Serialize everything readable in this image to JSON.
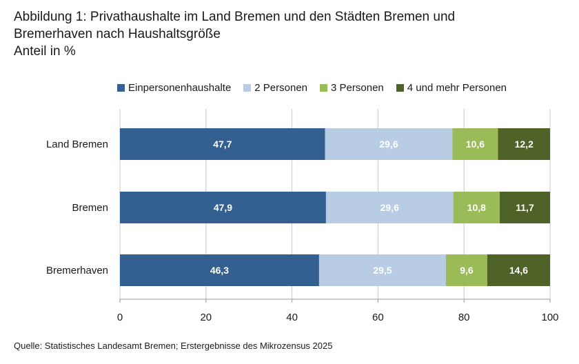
{
  "chart_data": {
    "type": "bar",
    "orientation": "horizontal",
    "stacked": true,
    "title": "Abbildung 1: Privathaushalte im Land Bremen und den Städten Bremen und Bremerhaven nach Haushaltsgröße",
    "title_lines": [
      "Abbildung 1: Privathaushalte im Land Bremen und den Städten Bremen und",
      "Bremerhaven nach Haushaltsgröße",
      "Anteil in %"
    ],
    "subtitle": "Anteil in %",
    "categories": [
      "Land Bremen",
      "Bremen",
      "Bremerhaven"
    ],
    "series": [
      {
        "name": "Einpersonenhaushalte",
        "color": "#335f91",
        "values": [
          47.7,
          47.9,
          46.3
        ],
        "labels": [
          "47,7",
          "47,9",
          "46,3"
        ],
        "label_color": "#ffffff"
      },
      {
        "name": "2 Personen",
        "color": "#b8cce4",
        "values": [
          29.6,
          29.6,
          29.5
        ],
        "labels": [
          "29,6",
          "29,6",
          "29,5"
        ],
        "label_color": "#ffffff"
      },
      {
        "name": "3 Personen",
        "color": "#9bbb59",
        "values": [
          10.6,
          10.8,
          9.6
        ],
        "labels": [
          "10,6",
          "10,8",
          "9,6"
        ],
        "label_color": "#ffffff"
      },
      {
        "name": "4 und mehr Personen",
        "color": "#4f6228",
        "values": [
          12.2,
          11.7,
          14.6
        ],
        "labels": [
          "12,2",
          "11,7",
          "14,6"
        ],
        "label_color": "#ffffff"
      }
    ],
    "xlim": [
      0,
      100
    ],
    "xticks": [
      0,
      20,
      40,
      60,
      80,
      100
    ],
    "xlabel": "",
    "ylabel": "",
    "grid": "vertical",
    "legend_position": "top"
  },
  "source": "Quelle: Statistisches Landesamt Bremen; Erstergebnisse des Mikrozensus 2025"
}
